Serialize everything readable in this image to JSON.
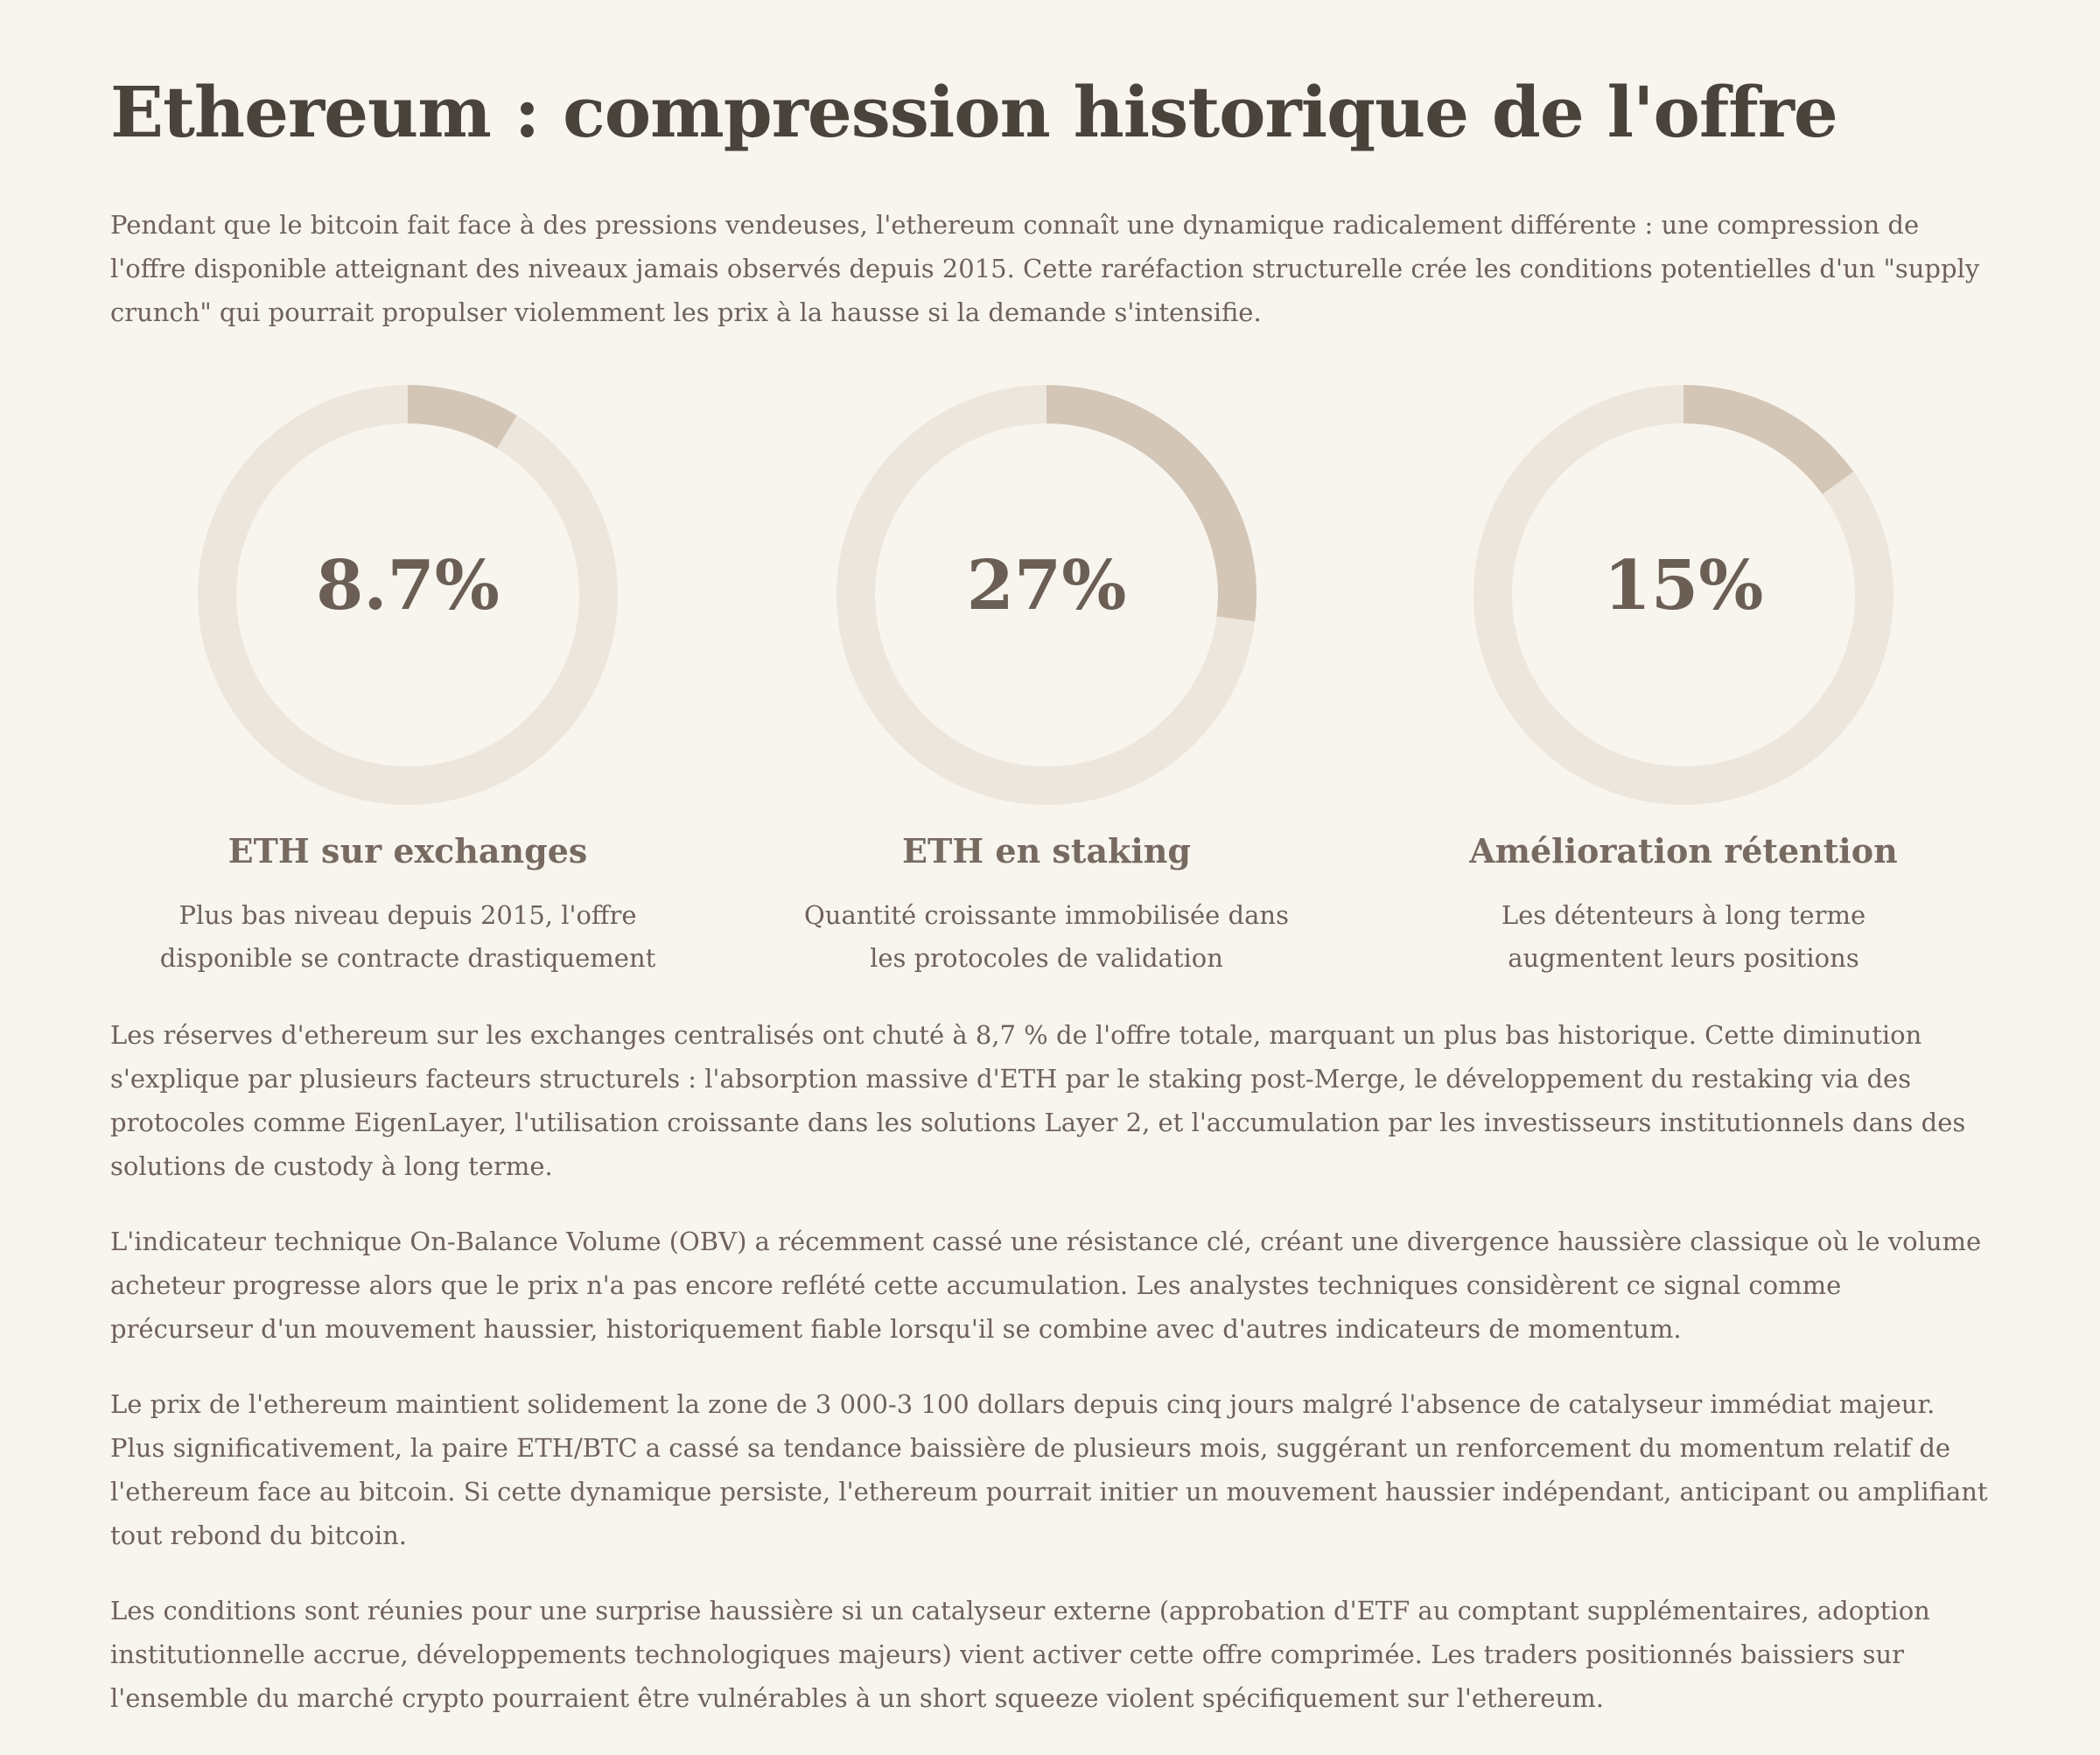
{
  "title": "Ethereum : compression historique de l'offre",
  "intro": "Pendant que le bitcoin fait face à des pressions vendeuses, l'ethereum connaît une dynamique radicalement différente : une compression de l'offre disponible atteignant des niveaux jamais observés depuis 2015. Cette raréfaction structurelle crée les conditions potentielles d'un \"supply crunch\" qui pourrait propulser violemment les prix à la hausse si la demande s'intensifie.",
  "colors": {
    "track": "#ede6dc",
    "progress": "#d4c6b6",
    "background": "#f8f5ef"
  },
  "stats": [
    {
      "value": "8.7%",
      "fraction": 0.087,
      "label": "ETH sur exchanges",
      "description": "Plus bas niveau depuis 2015, l'offre disponible se contracte drastiquement"
    },
    {
      "value": "27%",
      "fraction": 0.27,
      "label": "ETH en staking",
      "description": "Quantité croissante immobilisée dans les protocoles de validation"
    },
    {
      "value": "15%",
      "fraction": 0.15,
      "label": "Amélioration rétention",
      "description": "Les détenteurs à long terme augmentent leurs positions"
    }
  ],
  "paragraphs": [
    "Les réserves d'ethereum sur les exchanges centralisés ont chuté à 8,7 % de l'offre totale, marquant un plus bas historique. Cette diminution s'explique par plusieurs facteurs structurels : l'absorption massive d'ETH par le staking post-Merge, le développement du restaking via des protocoles comme EigenLayer, l'utilisation croissante dans les solutions Layer 2, et l'accumulation par les investisseurs institutionnels dans des solutions de custody à long terme.",
    "L'indicateur technique On-Balance Volume (OBV) a récemment cassé une résistance clé, créant une divergence haussière classique où le volume acheteur progresse alors que le prix n'a pas encore reflété cette accumulation. Les analystes techniques considèrent ce signal comme précurseur d'un mouvement haussier, historiquement fiable lorsqu'il se combine avec d'autres indicateurs de momentum.",
    "Le prix de l'ethereum maintient solidement la zone de 3 000-3 100 dollars depuis cinq jours malgré l'absence de catalyseur immédiat majeur. Plus significativement, la paire ETH/BTC a cassé sa tendance baissière de plusieurs mois, suggérant un renforcement du momentum relatif de l'ethereum face au bitcoin. Si cette dynamique persiste, l'ethereum pourrait initier un mouvement haussier indépendant, anticipant ou amplifiant tout rebond du bitcoin.",
    "Les conditions sont réunies pour une surprise haussière si un catalyseur externe (approbation d'ETF au comptant supplémentaires, adoption institutionnelle accrue, développements technologiques majeurs) vient activer cette offre comprimée. Les traders positionnés baissiers sur l'ensemble du marché crypto pourraient être vulnérables à un short squeeze violent spécifiquement sur l'ethereum."
  ]
}
